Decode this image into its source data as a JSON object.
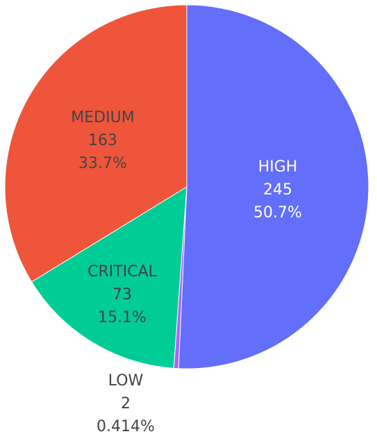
{
  "chart_data": {
    "type": "pie",
    "slices": [
      {
        "label": "HIGH",
        "value": 245,
        "percent": "50.7%",
        "color": "#636efa"
      },
      {
        "label": "LOW",
        "value": 2,
        "percent": "0.414%",
        "color": "#ab63fa"
      },
      {
        "label": "CRITICAL",
        "value": 73,
        "percent": "15.1%",
        "color": "#00cc96"
      },
      {
        "label": "MEDIUM",
        "value": 163,
        "percent": "33.7%",
        "color": "#ef553b"
      }
    ],
    "direction": "clockwise",
    "start": "top"
  }
}
